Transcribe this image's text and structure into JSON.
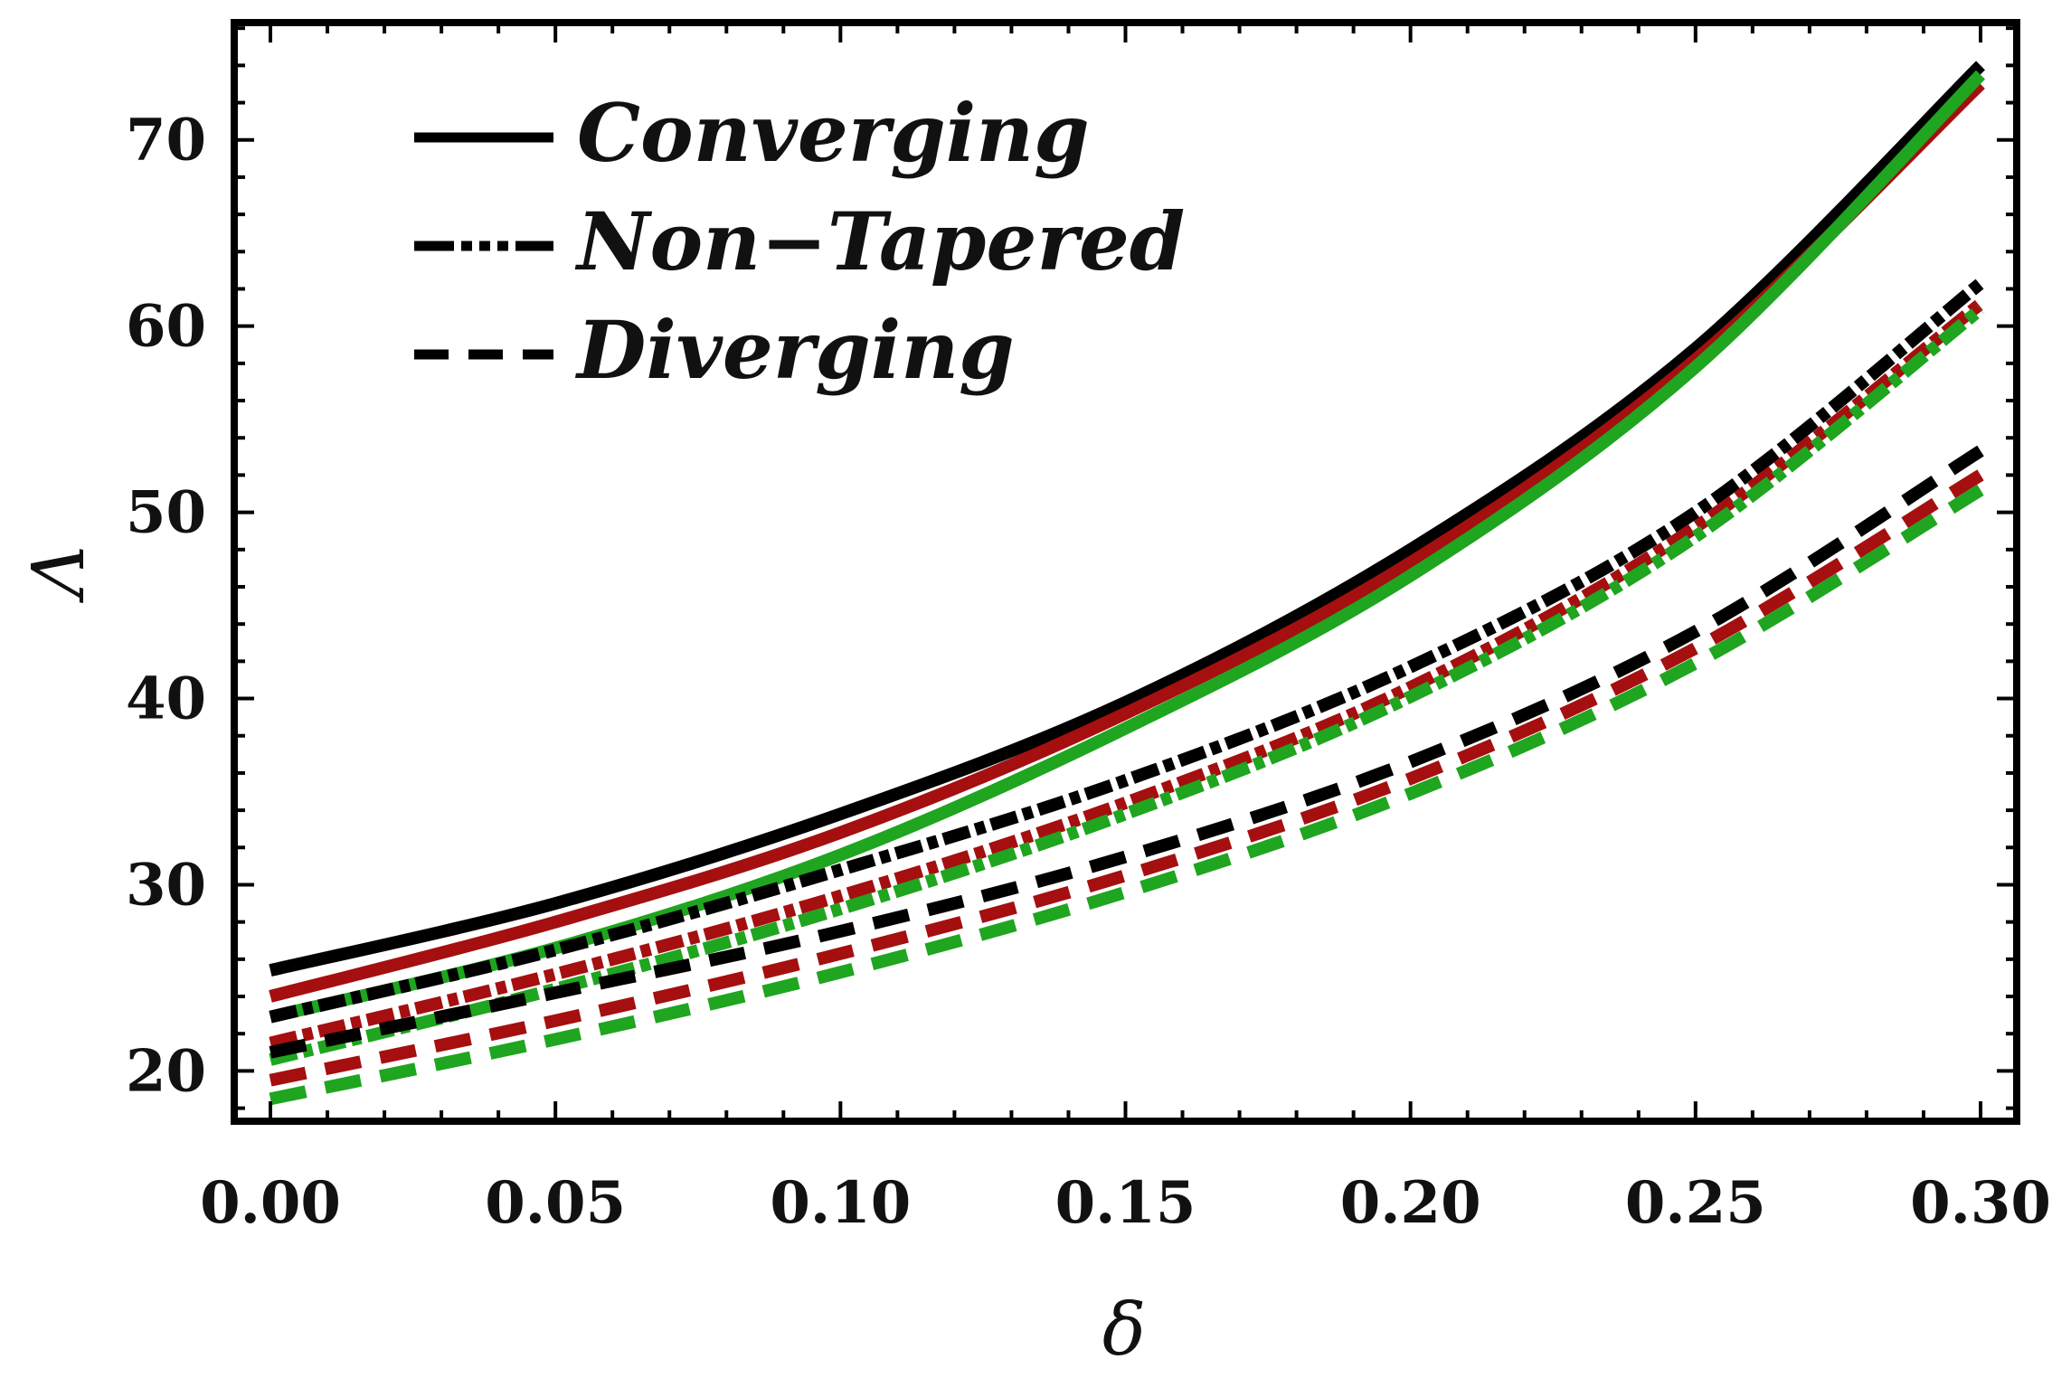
{
  "chart_data": {
    "type": "line",
    "xlabel": "δ",
    "ylabel": "Λ",
    "xlim": [
      0,
      0.3
    ],
    "ylim": [
      17.3,
      76.3
    ],
    "xticks": [
      {
        "value": 0.0,
        "label": "0.00"
      },
      {
        "value": 0.05,
        "label": "0.05"
      },
      {
        "value": 0.1,
        "label": "0.10"
      },
      {
        "value": 0.15,
        "label": "0.15"
      },
      {
        "value": 0.2,
        "label": "0.20"
      },
      {
        "value": 0.25,
        "label": "0.25"
      },
      {
        "value": 0.3,
        "label": "0.30"
      }
    ],
    "yticks": [
      {
        "value": 20,
        "label": "20"
      },
      {
        "value": 30,
        "label": "30"
      },
      {
        "value": 40,
        "label": "40"
      },
      {
        "value": 50,
        "label": "50"
      },
      {
        "value": 60,
        "label": "60"
      },
      {
        "value": 70,
        "label": "70"
      }
    ],
    "grid": false,
    "legend": {
      "position": "top-left",
      "entries": [
        {
          "label": "Converging",
          "style": "solid"
        },
        {
          "label": "Non−Tapered",
          "style": "dashdot"
        },
        {
          "label": "Diverging",
          "style": "dashed"
        }
      ]
    },
    "colors": {
      "black": "#000000",
      "red": "#a50f0f",
      "green": "#1fa51f"
    },
    "x": [
      0.0,
      0.05,
      0.1,
      0.15,
      0.2,
      0.25,
      0.3
    ],
    "series": [
      {
        "name": "Converging",
        "group": "Converging",
        "color": "#000000",
        "style": "solid",
        "values": [
          25.4,
          29.0,
          33.8,
          39.8,
          48.0,
          58.8,
          74.0
        ]
      },
      {
        "name": "Converging",
        "group": "Converging",
        "color": "#a50f0f",
        "style": "solid",
        "values": [
          24.0,
          28.0,
          32.8,
          39.2,
          47.3,
          58.2,
          73.0
        ]
      },
      {
        "name": "Converging",
        "group": "Converging",
        "color": "#1fa51f",
        "style": "solid",
        "values": [
          22.9,
          26.6,
          31.6,
          38.4,
          46.6,
          57.8,
          73.5
        ]
      },
      {
        "name": "Non−Tapered",
        "group": "Non−Tapered",
        "color": "#000000",
        "style": "dashdot",
        "values": [
          22.9,
          26.5,
          30.8,
          35.6,
          41.7,
          50.0,
          62.3
        ]
      },
      {
        "name": "Non−Tapered",
        "group": "Non−Tapered",
        "color": "#a50f0f",
        "style": "dashdot",
        "values": [
          21.5,
          25.2,
          29.4,
          34.4,
          40.6,
          49.2,
          61.2
        ]
      },
      {
        "name": "Non−Tapered",
        "group": "Non−Tapered",
        "color": "#1fa51f",
        "style": "dashdot",
        "values": [
          20.6,
          24.4,
          28.7,
          33.8,
          40.1,
          48.7,
          60.9
        ]
      },
      {
        "name": "Diverging",
        "group": "Diverging",
        "color": "#000000",
        "style": "dashed",
        "values": [
          21.0,
          24.2,
          27.5,
          31.5,
          36.6,
          43.6,
          53.3
        ]
      },
      {
        "name": "Diverging",
        "group": "Diverging",
        "color": "#a50f0f",
        "style": "dashed",
        "values": [
          19.5,
          22.7,
          26.3,
          30.5,
          35.7,
          42.7,
          52.0
        ]
      },
      {
        "name": "Diverging",
        "group": "Diverging",
        "color": "#1fa51f",
        "style": "dashed",
        "values": [
          18.5,
          21.7,
          25.3,
          29.6,
          34.9,
          41.9,
          51.2
        ]
      }
    ]
  }
}
